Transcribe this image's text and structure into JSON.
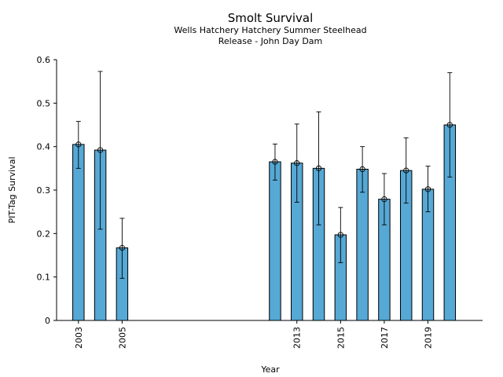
{
  "chart_data": {
    "type": "bar",
    "title": "Smolt Survival",
    "subtitle_lines": [
      "Wells Hatchery Hatchery Summer Steelhead",
      "Release - John Day Dam"
    ],
    "xlabel": "Year",
    "ylabel": "PIT-Tag Survival",
    "xlim": [
      2002,
      2021.5
    ],
    "ylim": [
      0,
      0.6
    ],
    "x_ticks": [
      2003,
      2005,
      2013,
      2015,
      2017,
      2019
    ],
    "y_ticks": [
      0,
      0.1,
      0.2,
      0.3,
      0.4,
      0.5,
      0.6
    ],
    "grid": false,
    "bar_color": "#56a8d5",
    "series": [
      {
        "points": [
          {
            "year": 2003,
            "value": 0.405,
            "lower": 0.35,
            "upper": 0.458
          },
          {
            "year": 2004,
            "value": 0.392,
            "lower": 0.21,
            "upper": 0.573
          },
          {
            "year": 2005,
            "value": 0.167,
            "lower": 0.097,
            "upper": 0.235
          },
          {
            "year": 2012,
            "value": 0.365,
            "lower": 0.323,
            "upper": 0.406
          },
          {
            "year": 2013,
            "value": 0.362,
            "lower": 0.272,
            "upper": 0.452
          },
          {
            "year": 2014,
            "value": 0.35,
            "lower": 0.22,
            "upper": 0.48
          },
          {
            "year": 2015,
            "value": 0.197,
            "lower": 0.133,
            "upper": 0.26
          },
          {
            "year": 2016,
            "value": 0.348,
            "lower": 0.295,
            "upper": 0.4
          },
          {
            "year": 2017,
            "value": 0.279,
            "lower": 0.22,
            "upper": 0.338
          },
          {
            "year": 2018,
            "value": 0.345,
            "lower": 0.27,
            "upper": 0.42
          },
          {
            "year": 2019,
            "value": 0.302,
            "lower": 0.25,
            "upper": 0.355
          },
          {
            "year": 2020,
            "value": 0.45,
            "lower": 0.33,
            "upper": 0.57
          }
        ]
      }
    ]
  }
}
